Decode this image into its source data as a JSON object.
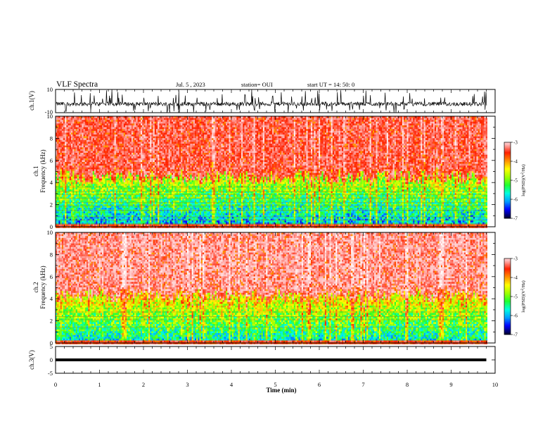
{
  "header": {
    "title": "VLF Spectra",
    "date": "Jul. 5 , 2023",
    "station": "station= OUI",
    "start": "start UT = 14: 50: 0"
  },
  "colors": {
    "spectrogram_scale": [
      "#00003a",
      "#0000ff",
      "#00a0ff",
      "#00ffe0",
      "#20ff30",
      "#a0ff00",
      "#ffff00",
      "#ff9000",
      "#ff2000",
      "#ffb8b8",
      "#ffffff"
    ]
  },
  "chart_data": [
    {
      "type": "line",
      "name": "ch1-waveform",
      "ylabel": "ch.1(V)",
      "ylim": [
        -10,
        10
      ],
      "yticks": [
        "10",
        "-10"
      ],
      "xlim": [
        0,
        10
      ],
      "description_values": {
        "baseline_v": -2.5,
        "spike_max_v": 10,
        "spike_min_v": -10
      }
    },
    {
      "type": "heatmap",
      "name": "ch1-spectrogram",
      "ylabel": "ch.1\nFrequency (kHz)",
      "ylim": [
        0,
        10
      ],
      "yticks": [
        "0",
        "2",
        "4",
        "6",
        "8",
        "10"
      ],
      "xlim": [
        0,
        10
      ],
      "data_end_min": 9.8,
      "noise_boundary_khz": 4.5,
      "colorbar": {
        "label": "log(PSD)(V²/Hz)",
        "range": [
          -7,
          -3
        ],
        "ticks": [
          "-3",
          "-4",
          "-5",
          "-6",
          "-7"
        ]
      }
    },
    {
      "type": "heatmap",
      "name": "ch2-spectrogram",
      "ylabel": "ch.2\nFrequency (kHz)",
      "ylim": [
        0,
        10
      ],
      "yticks": [
        "0",
        "2",
        "4",
        "6",
        "8",
        "10"
      ],
      "xlim": [
        0,
        10
      ],
      "data_end_min": 9.8,
      "noise_boundary_khz": 4.3,
      "colorbar": {
        "label": "log(PSD)(V²/Hz)",
        "range": [
          -7,
          -3
        ],
        "ticks": [
          "-3",
          "-4",
          "-5",
          "-6",
          "-7"
        ]
      }
    },
    {
      "type": "line",
      "name": "ch3-waveform",
      "ylabel": "ch.3(V)",
      "ylim": [
        -5,
        5
      ],
      "yticks": [
        "5",
        "0",
        "-5"
      ],
      "xlim": [
        0,
        10
      ],
      "constant_value_v": 0
    }
  ],
  "xaxis": {
    "label": "Time (min)",
    "ticks": [
      "0",
      "1",
      "2",
      "3",
      "4",
      "5",
      "6",
      "7",
      "8",
      "9",
      "10"
    ]
  },
  "colorbar_label_parts": {
    "pre": "log(PSD)(V",
    "sup": "2",
    "post": "/Hz)"
  }
}
